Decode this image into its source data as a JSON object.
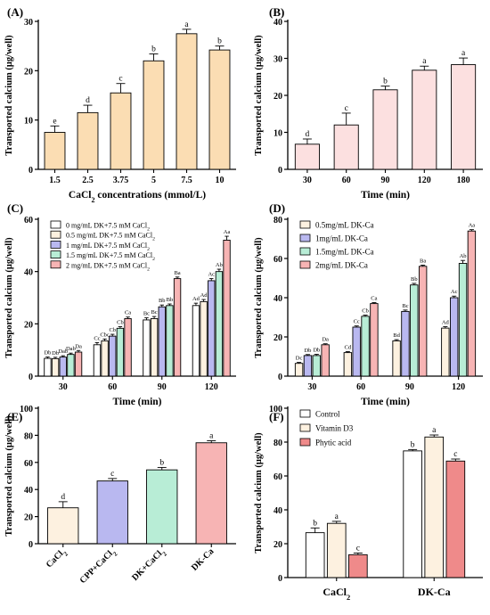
{
  "chart_data": [
    {
      "type": "bar",
      "panel_label": "(A)",
      "xlabel": "CaCl",
      "xlabel_sub": "2",
      "xlabel_after": " concentrations  (mmol/L)",
      "ylabel": "Transported calcium (μg/well)",
      "ylim": [
        0,
        30
      ],
      "yticks": [
        0,
        10,
        20,
        30
      ],
      "categories": [
        "1.5",
        "2.5",
        "3.75",
        "5",
        "7.5",
        "10"
      ],
      "values": [
        7.5,
        11.5,
        15.5,
        22,
        27.5,
        24.2
      ],
      "errors": [
        1.3,
        1.5,
        1.9,
        1.4,
        0.9,
        0.8
      ],
      "letters": [
        "e",
        "d",
        "c",
        "b",
        "a",
        "b"
      ],
      "color": "#FBDDB3"
    },
    {
      "type": "bar",
      "panel_label": "(B)",
      "xlabel": "Time (min)",
      "ylabel": "Transported calcium (μg/well)",
      "ylim": [
        0,
        40
      ],
      "yticks": [
        0,
        10,
        20,
        30,
        40
      ],
      "categories": [
        "30",
        "60",
        "90",
        "120",
        "180"
      ],
      "values": [
        6.8,
        12,
        21.5,
        26.8,
        28.3
      ],
      "errors": [
        1.4,
        3.2,
        1,
        1.1,
        1.8
      ],
      "letters": [
        "d",
        "c",
        "b",
        "a",
        "a"
      ],
      "color": "#FCE0E0"
    },
    {
      "type": "bar",
      "panel_label": "(C)",
      "xlabel": "Time (min)",
      "ylabel": "Transported calcium (μg/well)",
      "ylim": [
        0,
        60
      ],
      "yticks": [
        0,
        20,
        40,
        60
      ],
      "categories": [
        "30",
        "60",
        "90",
        "120"
      ],
      "legend_position": "top-left",
      "series": [
        {
          "name": "0 mg/mL DK+7.5 mM CaCl",
          "sub": "2",
          "color": "#FFFFFF",
          "values": [
            6.8,
            12,
            21.5,
            27
          ],
          "errors": [
            0.5,
            0.8,
            0.8,
            0.9
          ],
          "letters": [
            "Db",
            "Cc",
            "Bc",
            "Ad"
          ]
        },
        {
          "name": "0.5 mg/mL DK+7.5 mM CaCl",
          "sub": "2",
          "color": "#FDF1E0",
          "values": [
            6.7,
            13.5,
            22,
            28.5
          ],
          "errors": [
            0.5,
            0.7,
            0.8,
            0.8
          ],
          "letters": [
            "Db",
            "Cbc",
            "Bc",
            "Ad"
          ]
        },
        {
          "name": "1 mg/mL DK+7.5 mM CaCl",
          "sub": "2",
          "color": "#B9B8F0",
          "values": [
            7.3,
            15.3,
            26.5,
            36.5
          ],
          "errors": [
            0.5,
            0.7,
            0.7,
            0.8
          ],
          "letters": [
            "Dab",
            "Cb",
            "Bb",
            "Ac"
          ]
        },
        {
          "name": "1.5 mg/mL DK+7.5 mM CaCl",
          "sub": "2",
          "color": "#B8EDD6",
          "values": [
            8.3,
            18.3,
            27,
            40
          ],
          "errors": [
            0.5,
            0.6,
            0.6,
            0.9
          ],
          "letters": [
            "Dab",
            "Cb",
            "Bb",
            "Ab"
          ]
        },
        {
          "name": "2 mg/mL DK+7.5 mM CaCl",
          "sub": "2",
          "color": "#F7B4B4",
          "values": [
            9.2,
            22,
            37.3,
            52
          ],
          "errors": [
            0.6,
            0.6,
            0.6,
            1.5
          ],
          "letters": [
            "Da",
            "Ca",
            "Ba",
            "Aa"
          ]
        }
      ]
    },
    {
      "type": "bar",
      "panel_label": "(D)",
      "xlabel": "Time (min)",
      "ylabel": "Transported calcium (μg/well)",
      "ylim": [
        0,
        80
      ],
      "yticks": [
        0,
        20,
        40,
        60,
        80
      ],
      "categories": [
        "30",
        "60",
        "90",
        "120"
      ],
      "legend_position": "top-left",
      "series": [
        {
          "name": "0.5mg/mL DK-Ca",
          "color": "#FDF1E0",
          "values": [
            6.5,
            12,
            18,
            24.5
          ],
          "errors": [
            0.5,
            0.5,
            0.6,
            0.7
          ],
          "letters": [
            "Dc",
            "Cd",
            "Bd",
            "Ad"
          ]
        },
        {
          "name": "1mg/mL DK-Ca",
          "color": "#B9B8F0",
          "values": [
            10.5,
            25,
            33,
            40
          ],
          "errors": [
            0.5,
            0.6,
            0.7,
            0.8
          ],
          "letters": [
            "Db",
            "Cc",
            "Bc",
            "Ac"
          ]
        },
        {
          "name": "1.5mg/mL DK-Ca",
          "color": "#B8EDD6",
          "values": [
            10.5,
            30.5,
            46.5,
            57.5
          ],
          "errors": [
            0.6,
            0.6,
            0.8,
            1.5
          ],
          "letters": [
            "Db",
            "Cb",
            "Bb",
            "Ab"
          ]
        },
        {
          "name": "2mg/mL DK-Ca",
          "color": "#F7B4B4",
          "values": [
            16,
            37,
            56,
            74
          ],
          "errors": [
            0.5,
            0.5,
            0.6,
            0.7
          ],
          "letters": [
            "Da",
            "Ca",
            "Ba",
            "Aa"
          ]
        }
      ]
    },
    {
      "type": "bar",
      "panel_label": "(E)",
      "ylabel": "Transported calcium (μg/well)",
      "ylim": [
        0,
        100
      ],
      "yticks": [
        0,
        20,
        40,
        60,
        80,
        100
      ],
      "category_labels": [
        {
          "main": "CaCl",
          "sub": "2",
          "after": ""
        },
        {
          "main": "CPP+CaCl",
          "sub": "2",
          "after": ""
        },
        {
          "main": "DK+CaCl",
          "sub": "2",
          "after": ""
        },
        {
          "main": "DK-Ca",
          "sub": "",
          "after": ""
        }
      ],
      "values": [
        26.5,
        46.3,
        54.5,
        74.5
      ],
      "errors": [
        4.5,
        1.8,
        1.8,
        1.5
      ],
      "letters": [
        "d",
        "c",
        "b",
        "a"
      ],
      "colors": [
        "#FDF1E0",
        "#B9B8F0",
        "#B8EDD6",
        "#F7B4B4"
      ]
    },
    {
      "type": "bar",
      "panel_label": "(F)",
      "ylabel": "Transported calcium (μg/well)",
      "ylim": [
        0,
        100
      ],
      "yticks": [
        0,
        20,
        40,
        60,
        80,
        100
      ],
      "category_labels": [
        {
          "main": "CaCl",
          "sub": "2",
          "after": ""
        },
        {
          "main": "DK-Ca",
          "sub": "",
          "after": ""
        }
      ],
      "legend_position": "top-left",
      "series": [
        {
          "name": "Control",
          "color": "#FFFFFF",
          "values": [
            26.5,
            74.8
          ],
          "errors": [
            2.8,
            0.8
          ],
          "letters": [
            "b",
            "b"
          ]
        },
        {
          "name": "Vitamin D3",
          "color": "#FDF1E0",
          "values": [
            32,
            83
          ],
          "errors": [
            1.2,
            1.2
          ],
          "letters": [
            "a",
            "a"
          ]
        },
        {
          "name": "Phytic acid",
          "color": "#EF8A8A",
          "values": [
            13.5,
            68.8
          ],
          "errors": [
            1,
            1.2
          ],
          "letters": [
            "c",
            "c"
          ]
        }
      ]
    }
  ]
}
